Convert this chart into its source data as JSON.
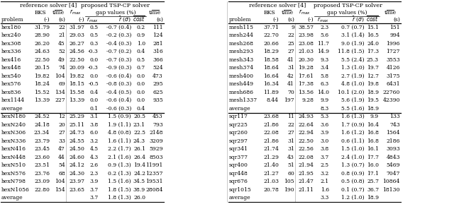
{
  "left_sections": [
    {
      "rows": [
        [
          "hex180",
          "31.79",
          "22",
          "31.97",
          "0.5",
          "-0.7 (0.4)",
          "0.2",
          "111"
        ],
        [
          "hex240",
          "28.90",
          "21",
          "29.03",
          "0.5",
          "-0.2 (0.3)",
          "0.9",
          "124"
        ],
        [
          "hex308",
          "26.20",
          "45",
          "26.27",
          "0.3",
          "-0.4 (0.3)",
          "1.0",
          "281"
        ],
        [
          "hex336",
          "24.63",
          "52",
          "24.56",
          "-0.3",
          "-0.7 (0.2)",
          "0.4",
          "316"
        ],
        [
          "hex416",
          "22.50",
          "49",
          "22.50",
          "0.0",
          "-0.7 (0.3)",
          "0.5",
          "366"
        ],
        [
          "hex448",
          "20.15",
          "74",
          "20.09",
          "-0.3",
          "-0.9 (0.3)",
          "0.7",
          "524"
        ],
        [
          "hex540",
          "19.82",
          "104",
          "19.82",
          "0.0",
          "-0.6 (0.4)",
          "0.0",
          "473"
        ],
        [
          "hex576",
          "18.24",
          "69",
          "18.15",
          "-0.5",
          "-0.8 (0.3)",
          "0.0",
          "295"
        ],
        [
          "hex836",
          "15.52",
          "134",
          "15.58",
          "0.4",
          "-0.4 (0.5)",
          "0.0",
          "625"
        ],
        [
          "hex1144",
          "13.39",
          "227",
          "13.39",
          "0.0",
          "-0.6 (0.4)",
          "0.0",
          "935"
        ]
      ],
      "average": [
        "average",
        "",
        "",
        "",
        "0.1",
        "-0.6 (0.3)",
        "0.4",
        ""
      ]
    },
    {
      "rows": [
        [
          "hexN180",
          "24.52",
          "12",
          "25.29",
          "3.1",
          "1.5 (0.9)",
          "20.5",
          "453"
        ],
        [
          "hexN240",
          "24.18",
          "20",
          "25.11",
          "3.8",
          "1.9 (1.1)",
          "23.1",
          "793"
        ],
        [
          "hexN306",
          "23.34",
          "27",
          "24.73",
          "6.0",
          "4.8 (0.8)",
          "22.5",
          "2148"
        ],
        [
          "hexN336",
          "23.79",
          "33",
          "24.55",
          "3.2",
          "1.6 (1.1)",
          "24.3",
          "3209"
        ],
        [
          "hexN416",
          "23.45",
          "47",
          "24.50",
          "4.5",
          "2.2 (1.7)",
          "26.1",
          "5929"
        ],
        [
          "hexN448",
          "23.60",
          "44",
          "24.60",
          "4.3",
          "2.1 (1.6)",
          "26.4",
          "8503"
        ],
        [
          "hexN510",
          "23.51",
          "54",
          "24.12",
          "2.6",
          "0.9 (1.3)",
          "19.4",
          "11991"
        ],
        [
          "hexN576",
          "23.76",
          "68",
          "24.30",
          "2.3",
          "0.2 (1.3)",
          "24.2",
          "12357"
        ],
        [
          "hexN798",
          "23.09",
          "104",
          "23.97",
          "3.9",
          "1.5 (1.6)",
          "34.5",
          "19531"
        ],
        [
          "hexN1056",
          "22.80",
          "154",
          "23.65",
          "3.7",
          "1.8 (1.5)",
          "38.9",
          "28084"
        ]
      ],
      "average": [
        "average",
        "",
        "",
        "",
        "3.7",
        "1.8 (1.3)",
        "26.0",
        ""
      ]
    }
  ],
  "right_sections": [
    {
      "rows": [
        [
          "mesh115",
          "37.71",
          "9",
          "38.57",
          "2.3",
          "0.7 (0.7)",
          "15.1",
          "151"
        ],
        [
          "mesh244",
          "22.70",
          "22",
          "23.98",
          "5.6",
          "3.1 (1.4)",
          "16.5",
          "994"
        ],
        [
          "mesh268",
          "20.66",
          "25",
          "23.08",
          "11.7",
          "9.0 (1.9)",
          "24.0",
          "1996"
        ],
        [
          "mesh293",
          "18.29",
          "27",
          "21.03",
          "14.9",
          "11.8 (1.5)",
          "17.3",
          "1727"
        ],
        [
          "mesh343",
          "18.58",
          "41",
          "20.30",
          "9.3",
          "5.5 (2.4)",
          "25.3",
          "3553"
        ],
        [
          "mesh374",
          "18.64",
          "31",
          "19.28",
          "3.4",
          "1.3 (1.0)",
          "19.7",
          "4126"
        ],
        [
          "mesh400",
          "16.64",
          "42",
          "17.61",
          "5.8",
          "2.7 (1.9)",
          "12.7",
          "3175"
        ],
        [
          "mesh449",
          "16.34",
          "41",
          "17.38",
          "6.3",
          "4.8 (1.0)",
          "19.8",
          "6431"
        ],
        [
          "mesh686",
          "11.89",
          "70",
          "13.56",
          "14.0",
          "10.1 (2.0)",
          "18.9",
          "22760"
        ],
        [
          "mesh1337",
          "8.44",
          "197",
          "9.28",
          "9.9",
          "5.6 (1.9)",
          "19.5",
          "42390"
        ]
      ],
      "average": [
        "average",
        "",
        "",
        "",
        "8.3",
        "5.5 (1.6)",
        "18.9",
        ""
      ]
    },
    {
      "rows": [
        [
          "sqr117",
          "23.68",
          "11",
          "24.93",
          "5.3",
          "1.6 (1.3)",
          "9.9",
          "133"
        ],
        [
          "sqr225",
          "21.86",
          "22",
          "22.64",
          "3.6",
          "1.7 (0.9)",
          "16.4",
          "743"
        ],
        [
          "sqr260",
          "22.08",
          "27",
          "22.94",
          "3.9",
          "1.6 (1.2)",
          "16.8",
          "1564"
        ],
        [
          "sqr297",
          "21.86",
          "31",
          "22.50",
          "3.0",
          "0.6 (1.1)",
          "16.8",
          "2186"
        ],
        [
          "sqr341",
          "21.74",
          "31",
          "22.56",
          "3.8",
          "1.5 (1.0)",
          "16.1",
          "3093"
        ],
        [
          "sqr377",
          "21.29",
          "43",
          "22.08",
          "3.7",
          "2.4 (1.0)",
          "17.7",
          "4843"
        ],
        [
          "sqr400",
          "21.40",
          "51",
          "21.94",
          "2.5",
          "1.3 (0.7)",
          "16.0",
          "5469"
        ],
        [
          "sqr448",
          "21.27",
          "60",
          "21.95",
          "3.2",
          "0.8 (0.9)",
          "17.1",
          "7047"
        ],
        [
          "sqr676",
          "21.03",
          "105",
          "21.47",
          "2.1",
          "0.5 (0.8)",
          "25.7",
          "10864"
        ],
        [
          "sqr1015",
          "20.78",
          "190",
          "21.11",
          "1.6",
          "0.1 (0.7)",
          "36.7",
          "18130"
        ]
      ],
      "average": [
        "average",
        "",
        "",
        "",
        "3.3",
        "1.2 (1.0)",
        "18.9",
        ""
      ]
    }
  ]
}
